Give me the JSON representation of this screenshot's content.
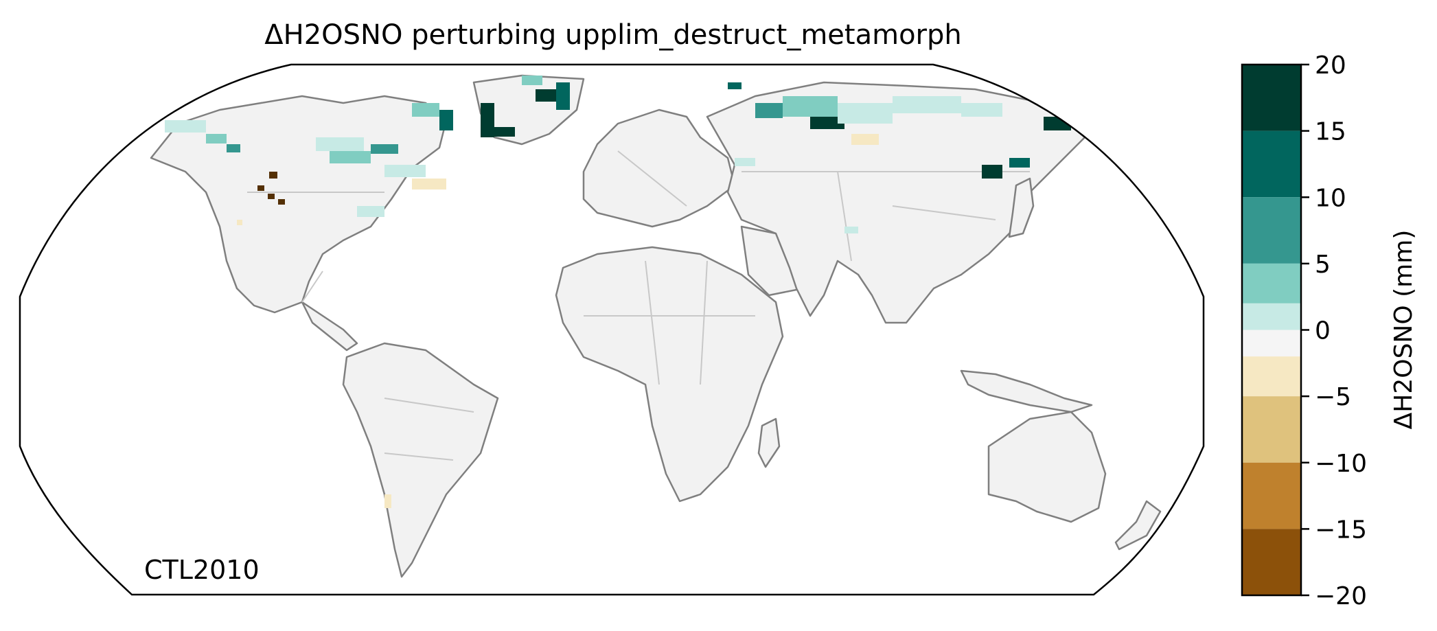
{
  "title": "ΔH2OSNO perturbing upplim_destruct_metamorph",
  "panel_label": "CTL2010",
  "colorbar": {
    "label": "ΔH2OSNO (mm)",
    "ticks": [
      "20",
      "15",
      "10",
      "5",
      "0",
      "−5",
      "−10",
      "−15",
      "−20"
    ],
    "levels": [
      20,
      15,
      10,
      5,
      0,
      -5,
      -10,
      -15,
      -20
    ],
    "bins": [
      {
        "range": "15 to 20",
        "color": "#003c30"
      },
      {
        "range": "10 to 15",
        "color": "#01665e"
      },
      {
        "range": "5 to 10",
        "color": "#35978f"
      },
      {
        "range": "2 to 5",
        "color": "#80cdc1"
      },
      {
        "range": "0 to 2",
        "color": "#c7eae5"
      },
      {
        "range": "-2 to 0",
        "color": "#f5f5f5"
      },
      {
        "range": "-5 to -2",
        "color": "#f6e8c3"
      },
      {
        "range": "-10 to -5",
        "color": "#dfc27d"
      },
      {
        "range": "-15 to -10",
        "color": "#bf812d"
      },
      {
        "range": "-20 to -15",
        "color": "#8c510a"
      },
      {
        "range": "< -20",
        "color": "#543005"
      }
    ]
  },
  "colors": {
    "land": "#f2f2f2",
    "coastline": "#7f7f7f",
    "borders": "#c8c8c8",
    "map_frame": "#000000"
  }
}
